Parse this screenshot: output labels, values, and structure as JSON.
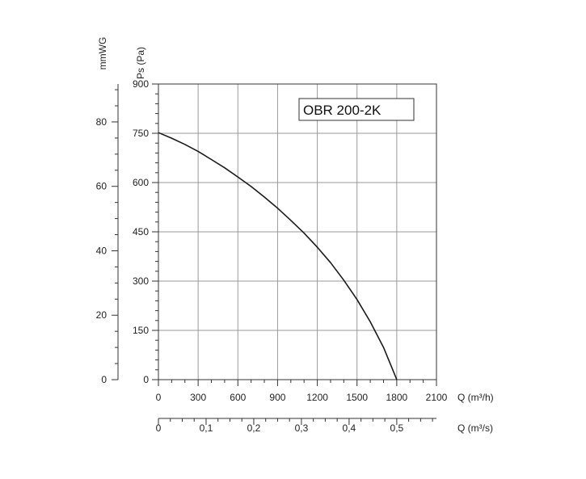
{
  "chart_data": {
    "type": "line",
    "title": "",
    "legend_label": "OBR 200-2K",
    "axes": {
      "flow_h": {
        "label": "Q (m³/h)",
        "range": [
          0,
          2100
        ],
        "ticks": [
          "0",
          "300",
          "600",
          "900",
          "1200",
          "1500",
          "1800",
          "2100"
        ]
      },
      "flow_s": {
        "label": "Q (m³/s)",
        "range": [
          0,
          0.5833
        ],
        "ticks": [
          "0",
          "0,1",
          "0,2",
          "0,3",
          "0,4",
          "0,5"
        ],
        "tick_values": [
          0,
          0.1,
          0.2,
          0.3,
          0.4,
          0.5
        ]
      },
      "pressure_pa": {
        "label": "Ps (Pa)",
        "range": [
          0,
          900
        ],
        "ticks": [
          "0",
          "150",
          "300",
          "450",
          "600",
          "750",
          "900"
        ]
      },
      "pressure_mmwg": {
        "label": "mmWG",
        "range": [
          0,
          91.77
        ],
        "ticks": [
          "0",
          "20",
          "40",
          "60",
          "80"
        ],
        "tick_values": [
          0,
          20,
          40,
          60,
          80
        ]
      }
    },
    "grid": true,
    "series": [
      {
        "x": [
          0,
          100,
          200,
          300,
          400,
          500,
          600,
          700,
          800,
          900,
          1000,
          1100,
          1200,
          1300,
          1400,
          1500,
          1600,
          1700,
          1800
        ],
        "y": [
          752,
          735,
          716,
          695,
          670,
          645,
          617,
          588,
          556,
          522,
          485,
          446,
          403,
          356,
          303,
          244,
          176,
          98,
          0
        ]
      }
    ]
  }
}
